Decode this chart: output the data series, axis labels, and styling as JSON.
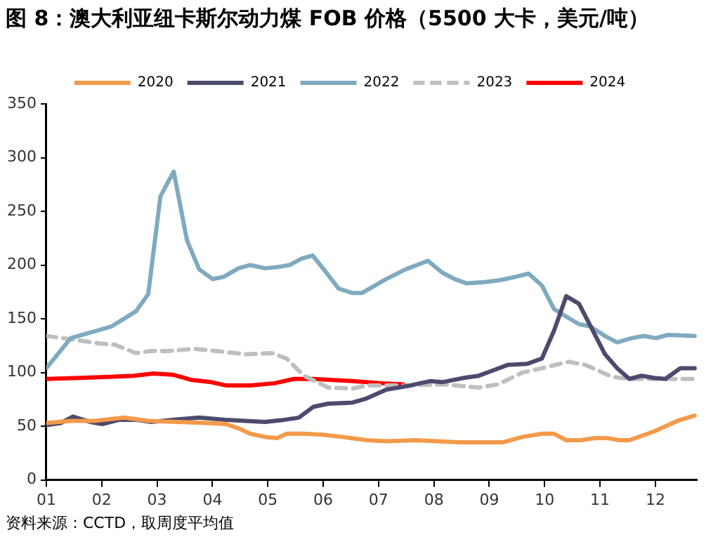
{
  "chart_data": {
    "type": "line",
    "title": "图 8：澳大利亚纽卡斯尔动力煤 FOB 价格（5500 大卡，美元/吨）",
    "annotations": [
      "资料来源：CCTD，取周度平均值"
    ],
    "xlim": [
      1,
      12.75
    ],
    "xticks": [
      {
        "value": 1,
        "label": "01"
      },
      {
        "value": 2,
        "label": "02"
      },
      {
        "value": 3,
        "label": "03"
      },
      {
        "value": 4,
        "label": "04"
      },
      {
        "value": 5,
        "label": "05"
      },
      {
        "value": 6,
        "label": "06"
      },
      {
        "value": 7,
        "label": "07"
      },
      {
        "value": 8,
        "label": "08"
      },
      {
        "value": 9,
        "label": "09"
      },
      {
        "value": 10,
        "label": "10"
      },
      {
        "value": 11,
        "label": "11"
      },
      {
        "value": 12,
        "label": "12"
      }
    ],
    "ylim": [
      0,
      350
    ],
    "yticks": [
      0,
      50,
      100,
      150,
      200,
      250,
      300,
      350
    ],
    "grid": false,
    "legend": "top",
    "marker": "none",
    "series": [
      {
        "name": "2020",
        "color": "#f39a4a",
        "line_style": "solid",
        "x": [
          1,
          1.44,
          1.88,
          2.4,
          2.84,
          3.37,
          3.89,
          4.24,
          4.47,
          4.68,
          4.95,
          5.17,
          5.34,
          5.65,
          6.0,
          6.35,
          6.79,
          7.14,
          7.67,
          8.46,
          9.24,
          9.6,
          9.95,
          10.17,
          10.39,
          10.65,
          10.91,
          11.13,
          11.35,
          11.53,
          11.97,
          12.4,
          12.71
        ],
        "values": [
          53,
          55,
          55,
          58,
          55,
          54,
          53,
          52,
          48,
          43,
          40,
          39,
          43,
          43,
          42,
          40,
          37,
          36,
          37,
          35,
          35,
          40,
          43,
          43,
          37,
          37,
          39,
          39,
          37,
          37,
          45,
          55,
          60
        ]
      },
      {
        "name": "2021",
        "color": "#4d4a6e",
        "line_style": "solid",
        "x": [
          1,
          1.26,
          1.48,
          1.79,
          2.01,
          2.32,
          2.62,
          2.89,
          3.28,
          3.76,
          4.24,
          4.95,
          5.3,
          5.56,
          5.82,
          6.09,
          6.53,
          6.79,
          7.14,
          7.58,
          7.93,
          8.15,
          8.54,
          8.81,
          9.07,
          9.33,
          9.68,
          9.95,
          10.17,
          10.39,
          10.62,
          10.87,
          11.09,
          11.31,
          11.53,
          11.75,
          11.97,
          12.18,
          12.45,
          12.71
        ],
        "values": [
          51,
          53,
          59,
          54,
          52,
          56,
          56,
          54,
          56,
          58,
          56,
          54,
          56,
          58,
          68,
          71,
          72,
          76,
          84,
          88,
          92,
          91,
          95,
          97,
          102,
          107,
          108,
          113,
          139,
          171,
          164,
          139,
          117,
          104,
          94,
          97,
          95,
          94,
          104,
          104
        ]
      },
      {
        "name": "2022",
        "color": "#7faac0",
        "line_style": "solid",
        "x": [
          1,
          1.44,
          1.92,
          2.18,
          2.62,
          2.84,
          3.06,
          3.3,
          3.54,
          3.76,
          4.0,
          4.2,
          4.47,
          4.68,
          4.95,
          5.16,
          5.39,
          5.61,
          5.81,
          6.04,
          6.28,
          6.53,
          6.7,
          7.14,
          7.49,
          7.89,
          8.15,
          8.37,
          8.59,
          8.89,
          9.2,
          9.47,
          9.71,
          9.95,
          10.17,
          10.39,
          10.62,
          10.82,
          11.09,
          11.31,
          11.57,
          11.79,
          12.01,
          12.23,
          12.71
        ],
        "values": [
          104,
          132,
          139,
          143,
          157,
          173,
          264,
          287,
          223,
          196,
          187,
          189,
          197,
          200,
          197,
          198,
          200,
          206,
          209,
          194,
          178,
          174,
          174,
          187,
          196,
          204,
          193,
          187,
          183,
          184,
          186,
          189,
          192,
          181,
          159,
          152,
          145,
          143,
          134,
          128,
          132,
          134,
          132,
          135,
          134
        ]
      },
      {
        "name": "2023",
        "color": "#bfbfbf",
        "line_style": "dashed",
        "x": [
          1,
          1.44,
          1.97,
          2.23,
          2.62,
          2.89,
          3.19,
          3.68,
          4.07,
          4.6,
          5.08,
          5.34,
          5.65,
          6.09,
          6.53,
          6.79,
          7.58,
          8.19,
          8.81,
          9.16,
          9.6,
          9.95,
          10.43,
          10.74,
          11.22,
          11.53,
          12.71
        ],
        "values": [
          134,
          131,
          127,
          126,
          118,
          120,
          120,
          122,
          120,
          117,
          118,
          113,
          97,
          86,
          85,
          88,
          88,
          89,
          86,
          89,
          100,
          104,
          110,
          107,
          96,
          94,
          94
        ]
      },
      {
        "name": "2024",
        "color": "#ff0000",
        "line_style": "solid",
        "x": [
          1,
          1.61,
          2.14,
          2.58,
          2.93,
          3.28,
          3.63,
          3.98,
          4.24,
          4.68,
          5.12,
          5.47,
          5.82,
          6.18,
          6.53,
          7.05,
          7.45
        ],
        "values": [
          94,
          95,
          96,
          97,
          99,
          98,
          93,
          91,
          88,
          88,
          90,
          94,
          94,
          93,
          92,
          90,
          89
        ]
      }
    ]
  }
}
